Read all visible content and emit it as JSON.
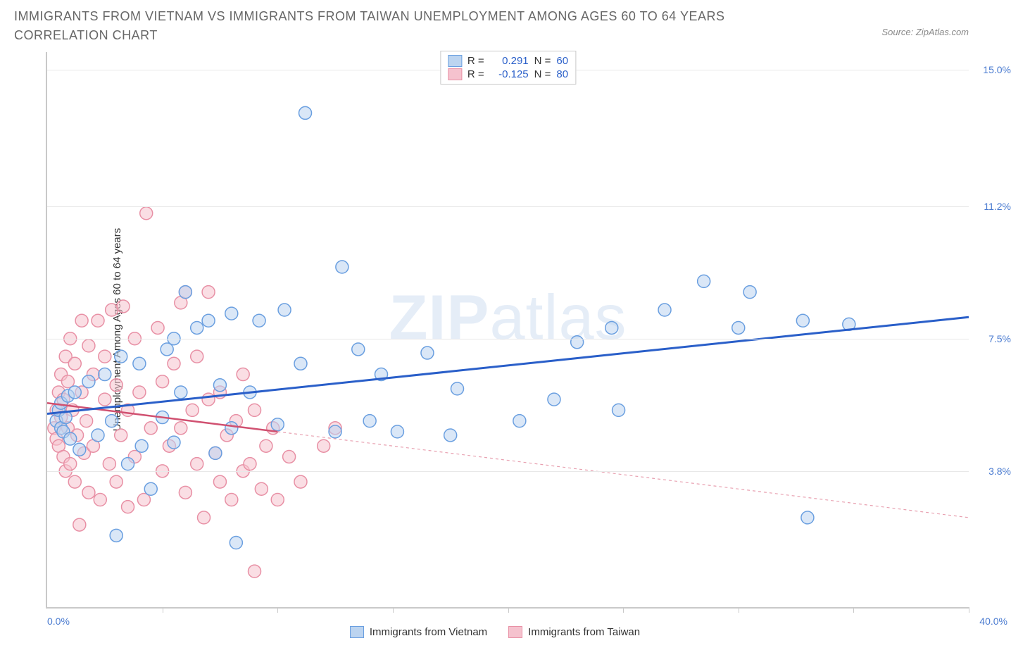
{
  "title": "IMMIGRANTS FROM VIETNAM VS IMMIGRANTS FROM TAIWAN UNEMPLOYMENT AMONG AGES 60 TO 64 YEARS CORRELATION CHART",
  "source": "Source: ZipAtlas.com",
  "y_axis_label": "Unemployment Among Ages 60 to 64 years",
  "watermark_bold": "ZIP",
  "watermark_light": "atlas",
  "chart": {
    "type": "scatter",
    "xlim": [
      0,
      40
    ],
    "ylim": [
      0,
      15.5
    ],
    "x_min_label": "0.0%",
    "x_max_label": "40.0%",
    "x_ticks": [
      5,
      10,
      15,
      20,
      25,
      30,
      35,
      40
    ],
    "y_gridlines": [
      {
        "value": 15.0,
        "label": "15.0%"
      },
      {
        "value": 11.2,
        "label": "11.2%"
      },
      {
        "value": 7.5,
        "label": "7.5%"
      },
      {
        "value": 3.8,
        "label": "3.8%"
      }
    ],
    "marker_radius": 9,
    "marker_stroke_width": 1.5,
    "series": [
      {
        "name": "Immigrants from Vietnam",
        "fill": "#bcd4f0",
        "stroke": "#6a9fe0",
        "fill_opacity": 0.55,
        "r_value": "0.291",
        "n_value": "60",
        "trend": {
          "x1": 0,
          "y1": 5.4,
          "x2": 40,
          "y2": 8.1,
          "color": "#2a5fc9",
          "width": 3,
          "dash": "none"
        },
        "points": [
          [
            0.4,
            5.2
          ],
          [
            0.5,
            5.5
          ],
          [
            0.6,
            5.0
          ],
          [
            0.6,
            5.7
          ],
          [
            0.7,
            4.9
          ],
          [
            0.8,
            5.3
          ],
          [
            0.9,
            5.9
          ],
          [
            1.0,
            4.7
          ],
          [
            1.2,
            6.0
          ],
          [
            1.4,
            4.4
          ],
          [
            1.8,
            6.3
          ],
          [
            2.2,
            4.8
          ],
          [
            2.5,
            6.5
          ],
          [
            2.8,
            5.2
          ],
          [
            3.0,
            2.0
          ],
          [
            3.2,
            7.0
          ],
          [
            3.5,
            4.0
          ],
          [
            4.0,
            6.8
          ],
          [
            4.1,
            4.5
          ],
          [
            4.5,
            3.3
          ],
          [
            5.0,
            5.3
          ],
          [
            5.2,
            7.2
          ],
          [
            5.5,
            4.6
          ],
          [
            5.5,
            7.5
          ],
          [
            5.8,
            6.0
          ],
          [
            6.0,
            8.8
          ],
          [
            6.5,
            7.8
          ],
          [
            7.0,
            8.0
          ],
          [
            7.3,
            4.3
          ],
          [
            7.5,
            6.2
          ],
          [
            8.0,
            8.2
          ],
          [
            8.0,
            5.0
          ],
          [
            8.2,
            1.8
          ],
          [
            8.8,
            6.0
          ],
          [
            9.2,
            8.0
          ],
          [
            10.0,
            5.1
          ],
          [
            10.3,
            8.3
          ],
          [
            11.0,
            6.8
          ],
          [
            11.2,
            13.8
          ],
          [
            12.5,
            4.9
          ],
          [
            12.8,
            9.5
          ],
          [
            13.5,
            7.2
          ],
          [
            14.0,
            5.2
          ],
          [
            14.5,
            6.5
          ],
          [
            15.2,
            4.9
          ],
          [
            16.5,
            7.1
          ],
          [
            17.5,
            4.8
          ],
          [
            17.8,
            6.1
          ],
          [
            20.5,
            5.2
          ],
          [
            22.0,
            5.8
          ],
          [
            23.0,
            7.4
          ],
          [
            24.5,
            7.8
          ],
          [
            24.8,
            5.5
          ],
          [
            26.8,
            8.3
          ],
          [
            28.5,
            9.1
          ],
          [
            30.0,
            7.8
          ],
          [
            30.5,
            8.8
          ],
          [
            32.8,
            8.0
          ],
          [
            33.0,
            2.5
          ],
          [
            34.8,
            7.9
          ]
        ]
      },
      {
        "name": "Immigrants from Taiwan",
        "fill": "#f5c2ce",
        "stroke": "#e890a5",
        "fill_opacity": 0.55,
        "r_value": "-0.125",
        "n_value": "80",
        "trend_solid": {
          "x1": 0,
          "y1": 5.7,
          "x2": 10,
          "y2": 4.9,
          "color": "#d05070",
          "width": 2.5,
          "dash": "none"
        },
        "trend_dash": {
          "x1": 10,
          "y1": 4.9,
          "x2": 40,
          "y2": 2.5,
          "color": "#e8a0b0",
          "width": 1.2,
          "dash": "4,4"
        },
        "points": [
          [
            0.3,
            5.0
          ],
          [
            0.4,
            5.5
          ],
          [
            0.4,
            4.7
          ],
          [
            0.5,
            6.0
          ],
          [
            0.5,
            4.5
          ],
          [
            0.6,
            5.3
          ],
          [
            0.6,
            6.5
          ],
          [
            0.7,
            4.2
          ],
          [
            0.7,
            5.8
          ],
          [
            0.8,
            7.0
          ],
          [
            0.8,
            3.8
          ],
          [
            0.9,
            5.0
          ],
          [
            0.9,
            6.3
          ],
          [
            1.0,
            4.0
          ],
          [
            1.0,
            7.5
          ],
          [
            1.1,
            5.5
          ],
          [
            1.2,
            3.5
          ],
          [
            1.2,
            6.8
          ],
          [
            1.3,
            4.8
          ],
          [
            1.4,
            2.3
          ],
          [
            1.5,
            6.0
          ],
          [
            1.5,
            8.0
          ],
          [
            1.6,
            4.3
          ],
          [
            1.7,
            5.2
          ],
          [
            1.8,
            7.3
          ],
          [
            1.8,
            3.2
          ],
          [
            2.0,
            6.5
          ],
          [
            2.0,
            4.5
          ],
          [
            2.2,
            8.0
          ],
          [
            2.3,
            3.0
          ],
          [
            2.5,
            5.8
          ],
          [
            2.5,
            7.0
          ],
          [
            2.7,
            4.0
          ],
          [
            2.8,
            8.3
          ],
          [
            3.0,
            3.5
          ],
          [
            3.0,
            6.2
          ],
          [
            3.2,
            4.8
          ],
          [
            3.3,
            8.4
          ],
          [
            3.5,
            5.5
          ],
          [
            3.5,
            2.8
          ],
          [
            3.8,
            7.5
          ],
          [
            3.8,
            4.2
          ],
          [
            4.0,
            6.0
          ],
          [
            4.2,
            3.0
          ],
          [
            4.3,
            11.0
          ],
          [
            4.5,
            5.0
          ],
          [
            4.8,
            7.8
          ],
          [
            5.0,
            3.8
          ],
          [
            5.0,
            6.3
          ],
          [
            5.3,
            4.5
          ],
          [
            5.5,
            6.8
          ],
          [
            5.8,
            5.0
          ],
          [
            5.8,
            8.5
          ],
          [
            6.0,
            3.2
          ],
          [
            6.0,
            8.8
          ],
          [
            6.3,
            5.5
          ],
          [
            6.5,
            4.0
          ],
          [
            6.5,
            7.0
          ],
          [
            6.8,
            2.5
          ],
          [
            7.0,
            5.8
          ],
          [
            7.0,
            8.8
          ],
          [
            7.3,
            4.3
          ],
          [
            7.5,
            3.5
          ],
          [
            7.5,
            6.0
          ],
          [
            7.8,
            4.8
          ],
          [
            8.0,
            3.0
          ],
          [
            8.2,
            5.2
          ],
          [
            8.5,
            3.8
          ],
          [
            8.5,
            6.5
          ],
          [
            8.8,
            4.0
          ],
          [
            9.0,
            1.0
          ],
          [
            9.0,
            5.5
          ],
          [
            9.3,
            3.3
          ],
          [
            9.5,
            4.5
          ],
          [
            9.8,
            5.0
          ],
          [
            10.0,
            3.0
          ],
          [
            10.5,
            4.2
          ],
          [
            11.0,
            3.5
          ],
          [
            12.0,
            4.5
          ],
          [
            12.5,
            5.0
          ]
        ]
      }
    ],
    "legend_labels": {
      "R": "R =",
      "N": "N ="
    },
    "stat_color": "#2a5fc9"
  },
  "bottom_legend": [
    {
      "label": "Immigrants from Vietnam",
      "fill": "#bcd4f0",
      "stroke": "#6a9fe0"
    },
    {
      "label": "Immigrants from Taiwan",
      "fill": "#f5c2ce",
      "stroke": "#e890a5"
    }
  ]
}
